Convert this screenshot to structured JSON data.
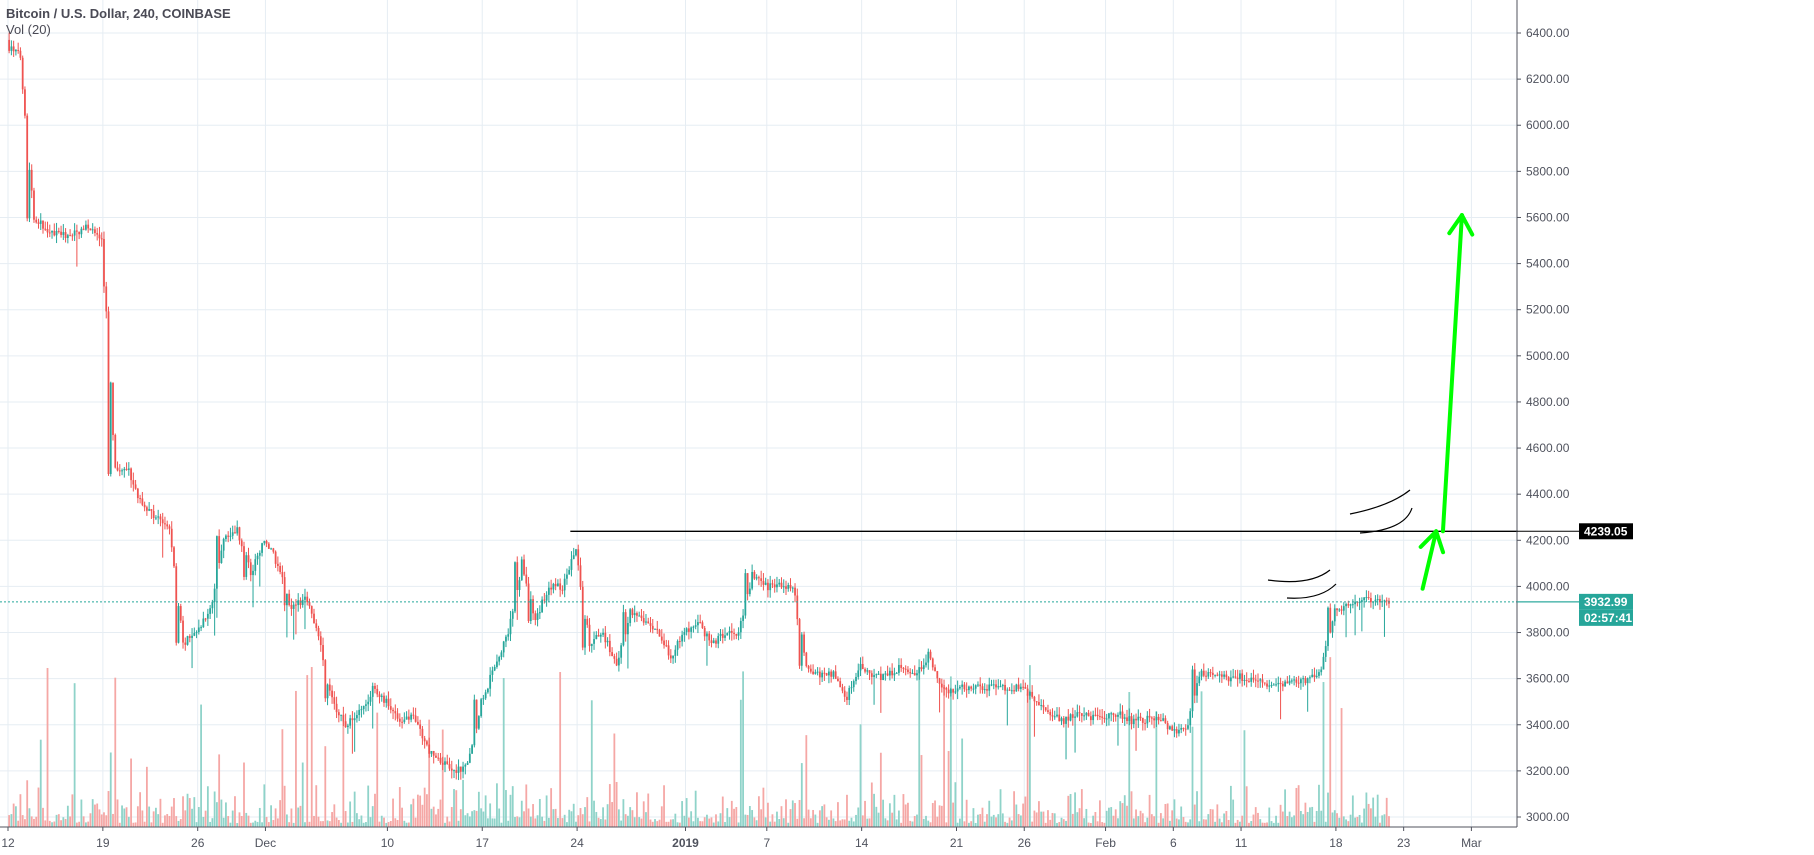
{
  "header": {
    "title": "Bitcoin / U.S. Dollar, 240, COINBASE",
    "indicator": "Vol (20)"
  },
  "colors": {
    "up": "#26a69a",
    "down": "#ef5350",
    "vol_up": "#8fd3c9",
    "vol_down": "#f5a7a5",
    "grid": "#e6edf3",
    "arrow": "#00ff00",
    "resistance": "#000000"
  },
  "chart_data": {
    "type": "candlestick",
    "title": "Bitcoin / U.S. Dollar, 240, COINBASE",
    "ylim": [
      2960,
      6500
    ],
    "y_ticks": [
      "6400.00",
      "6200.00",
      "6000.00",
      "5800.00",
      "5600.00",
      "5400.00",
      "5200.00",
      "5000.00",
      "4800.00",
      "4600.00",
      "4400.00",
      "4200.00",
      "4000.00",
      "3800.00",
      "3600.00",
      "3400.00",
      "3200.00",
      "3000.00"
    ],
    "x_ticks": [
      {
        "label": "12",
        "day": 0
      },
      {
        "label": "19",
        "day": 7
      },
      {
        "label": "26",
        "day": 14
      },
      {
        "label": "Dec",
        "day": 19
      },
      {
        "label": "10",
        "day": 28
      },
      {
        "label": "17",
        "day": 35
      },
      {
        "label": "24",
        "day": 42
      },
      {
        "label": "2019",
        "day": 50
      },
      {
        "label": "7",
        "day": 56
      },
      {
        "label": "14",
        "day": 63
      },
      {
        "label": "21",
        "day": 70
      },
      {
        "label": "26",
        "day": 75
      },
      {
        "label": "Feb",
        "day": 81
      },
      {
        "label": "6",
        "day": 86
      },
      {
        "label": "11",
        "day": 91
      },
      {
        "label": "18",
        "day": 98
      },
      {
        "label": "23",
        "day": 103
      },
      {
        "label": "Mar",
        "day": 108
      }
    ],
    "daily_close_start": "2018-11-12",
    "daily_close": [
      6350,
      6300,
      5600,
      5550,
      5520,
      5530,
      5560,
      5500,
      4500,
      4500,
      4350,
      4300,
      4250,
      3750,
      3800,
      3900,
      4200,
      4250,
      4050,
      4200,
      4100,
      3900,
      3950,
      3800,
      3500,
      3400,
      3450,
      3550,
      3500,
      3400,
      3450,
      3300,
      3250,
      3200,
      3220,
      3500,
      3650,
      3800,
      4100,
      3850,
      4000,
      4000,
      4150,
      3750,
      3800,
      3650,
      3900,
      3850,
      3800,
      3700,
      3800,
      3850,
      3750,
      3800,
      3800,
      4050,
      4000,
      4000,
      4000,
      3650,
      3620,
      3620,
      3520,
      3650,
      3600,
      3620,
      3650,
      3600,
      3700,
      3550,
      3550,
      3570,
      3560,
      3570,
      3560,
      3560,
      3500,
      3450,
      3420,
      3450,
      3430,
      3440,
      3450,
      3420,
      3420,
      3430,
      3380,
      3370,
      3630,
      3620,
      3600,
      3610,
      3590,
      3580,
      3570,
      3580,
      3590,
      3650,
      3900,
      3920,
      3950,
      3930,
      3932.99
    ],
    "last_price": "3932.99",
    "countdown": "02:57:41",
    "annotations": {
      "resistance_line": {
        "price": 4239.05,
        "label": "4239.05",
        "from_day": 41.5
      },
      "arrows": [
        {
          "from": {
            "day": 104.4,
            "price": 3990
          },
          "to": {
            "day": 105.4,
            "price": 4239
          }
        },
        {
          "from": {
            "day": 105.9,
            "price": 4239
          },
          "to": {
            "day": 107.3,
            "price": 5610
          }
        }
      ]
    }
  }
}
